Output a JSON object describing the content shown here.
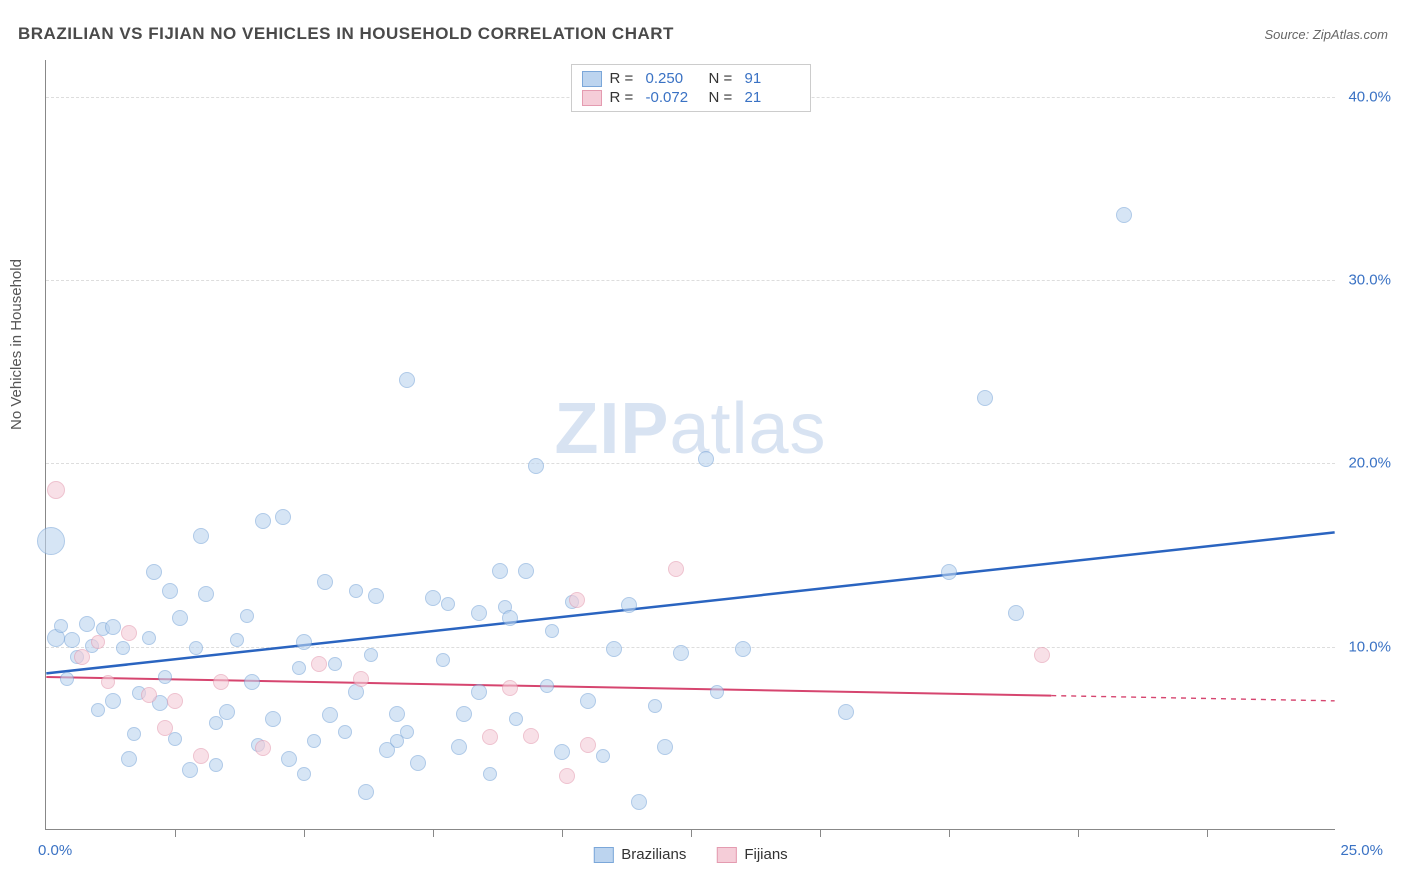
{
  "title": "BRAZILIAN VS FIJIAN NO VEHICLES IN HOUSEHOLD CORRELATION CHART",
  "source_label": "Source: ZipAtlas.com",
  "ylabel": "No Vehicles in Household",
  "watermark_a": "ZIP",
  "watermark_b": "atlas",
  "chart": {
    "type": "scatter",
    "xlim": [
      0,
      25
    ],
    "ylim": [
      0,
      42
    ],
    "x_tick_labels": {
      "0": "0.0%",
      "25": "25.0%"
    },
    "y_tick_labels": {
      "10": "10.0%",
      "20": "20.0%",
      "30": "30.0%",
      "40": "40.0%"
    },
    "x_minor_ticks": [
      2.5,
      5,
      7.5,
      10,
      12.5,
      15,
      17.5,
      20,
      22.5
    ],
    "grid_color": "#dddddd",
    "axis_color": "#888888",
    "background": "#ffffff",
    "label_color": "#3a72c4",
    "label_fontsize": 15
  },
  "series": [
    {
      "name": "Brazilians",
      "fill": "#bcd4ef",
      "stroke": "#7ba7d9",
      "fill_opacity": 0.6,
      "line_color": "#2a64c0",
      "line_width": 2.5,
      "R": "0.250",
      "N": "91",
      "trend": {
        "x1": 0,
        "y1": 8.5,
        "x2": 25,
        "y2": 16.2,
        "solid_until_x": 25
      },
      "points": [
        {
          "x": 0.1,
          "y": 15.7,
          "r": 14
        },
        {
          "x": 0.2,
          "y": 10.4,
          "r": 9
        },
        {
          "x": 0.3,
          "y": 11.1,
          "r": 7
        },
        {
          "x": 0.5,
          "y": 10.3,
          "r": 8
        },
        {
          "x": 0.6,
          "y": 9.4,
          "r": 7
        },
        {
          "x": 0.8,
          "y": 11.2,
          "r": 8
        },
        {
          "x": 0.9,
          "y": 10.0,
          "r": 7
        },
        {
          "x": 1.1,
          "y": 10.9,
          "r": 7
        },
        {
          "x": 1.3,
          "y": 11.0,
          "r": 8
        },
        {
          "x": 1.5,
          "y": 9.9,
          "r": 7
        },
        {
          "x": 1.3,
          "y": 7.0,
          "r": 8
        },
        {
          "x": 1.6,
          "y": 3.8,
          "r": 8
        },
        {
          "x": 1.8,
          "y": 7.4,
          "r": 7
        },
        {
          "x": 2.0,
          "y": 10.4,
          "r": 7
        },
        {
          "x": 2.1,
          "y": 14.0,
          "r": 8
        },
        {
          "x": 2.2,
          "y": 6.9,
          "r": 8
        },
        {
          "x": 2.4,
          "y": 13.0,
          "r": 8
        },
        {
          "x": 2.6,
          "y": 11.5,
          "r": 8
        },
        {
          "x": 2.9,
          "y": 9.9,
          "r": 7
        },
        {
          "x": 3.0,
          "y": 16.0,
          "r": 8
        },
        {
          "x": 3.1,
          "y": 12.8,
          "r": 8
        },
        {
          "x": 2.8,
          "y": 3.2,
          "r": 8
        },
        {
          "x": 3.3,
          "y": 5.8,
          "r": 7
        },
        {
          "x": 3.5,
          "y": 6.4,
          "r": 8
        },
        {
          "x": 3.7,
          "y": 10.3,
          "r": 7
        },
        {
          "x": 4.0,
          "y": 8.0,
          "r": 8
        },
        {
          "x": 4.2,
          "y": 16.8,
          "r": 8
        },
        {
          "x": 4.6,
          "y": 17.0,
          "r": 8
        },
        {
          "x": 4.4,
          "y": 6.0,
          "r": 8
        },
        {
          "x": 4.7,
          "y": 3.8,
          "r": 8
        },
        {
          "x": 5.0,
          "y": 10.2,
          "r": 8
        },
        {
          "x": 5.2,
          "y": 4.8,
          "r": 7
        },
        {
          "x": 5.4,
          "y": 13.5,
          "r": 8
        },
        {
          "x": 5.5,
          "y": 6.2,
          "r": 8
        },
        {
          "x": 5.8,
          "y": 5.3,
          "r": 7
        },
        {
          "x": 6.0,
          "y": 7.5,
          "r": 8
        },
        {
          "x": 6.2,
          "y": 2.0,
          "r": 8
        },
        {
          "x": 6.4,
          "y": 12.7,
          "r": 8
        },
        {
          "x": 6.6,
          "y": 4.3,
          "r": 8
        },
        {
          "x": 6.8,
          "y": 6.3,
          "r": 8
        },
        {
          "x": 6.8,
          "y": 4.8,
          "r": 7
        },
        {
          "x": 7.0,
          "y": 24.5,
          "r": 8
        },
        {
          "x": 7.2,
          "y": 3.6,
          "r": 8
        },
        {
          "x": 7.5,
          "y": 12.6,
          "r": 8
        },
        {
          "x": 7.8,
          "y": 12.3,
          "r": 7
        },
        {
          "x": 8.0,
          "y": 4.5,
          "r": 8
        },
        {
          "x": 8.1,
          "y": 6.3,
          "r": 8
        },
        {
          "x": 8.4,
          "y": 7.5,
          "r": 8
        },
        {
          "x": 8.4,
          "y": 11.8,
          "r": 8
        },
        {
          "x": 8.8,
          "y": 14.1,
          "r": 8
        },
        {
          "x": 8.9,
          "y": 12.1,
          "r": 7
        },
        {
          "x": 9.0,
          "y": 11.5,
          "r": 8
        },
        {
          "x": 9.3,
          "y": 14.1,
          "r": 8
        },
        {
          "x": 9.5,
          "y": 19.8,
          "r": 8
        },
        {
          "x": 9.7,
          "y": 7.8,
          "r": 7
        },
        {
          "x": 10.0,
          "y": 4.2,
          "r": 8
        },
        {
          "x": 10.2,
          "y": 12.4,
          "r": 7
        },
        {
          "x": 10.5,
          "y": 7.0,
          "r": 8
        },
        {
          "x": 11.0,
          "y": 9.8,
          "r": 8
        },
        {
          "x": 11.3,
          "y": 12.2,
          "r": 8
        },
        {
          "x": 11.5,
          "y": 1.5,
          "r": 8
        },
        {
          "x": 12.0,
          "y": 4.5,
          "r": 8
        },
        {
          "x": 12.3,
          "y": 9.6,
          "r": 8
        },
        {
          "x": 12.8,
          "y": 20.2,
          "r": 8
        },
        {
          "x": 13.5,
          "y": 9.8,
          "r": 8
        },
        {
          "x": 15.5,
          "y": 6.4,
          "r": 8
        },
        {
          "x": 17.5,
          "y": 14.0,
          "r": 8
        },
        {
          "x": 18.2,
          "y": 23.5,
          "r": 8
        },
        {
          "x": 18.8,
          "y": 11.8,
          "r": 8
        },
        {
          "x": 20.9,
          "y": 33.5,
          "r": 8
        },
        {
          "x": 3.3,
          "y": 3.5,
          "r": 7
        },
        {
          "x": 2.3,
          "y": 8.3,
          "r": 7
        },
        {
          "x": 1.0,
          "y": 6.5,
          "r": 7
        },
        {
          "x": 5.6,
          "y": 9.0,
          "r": 7
        },
        {
          "x": 6.3,
          "y": 9.5,
          "r": 7
        },
        {
          "x": 4.1,
          "y": 4.6,
          "r": 7
        },
        {
          "x": 8.6,
          "y": 3.0,
          "r": 7
        },
        {
          "x": 9.1,
          "y": 6.0,
          "r": 7
        },
        {
          "x": 7.0,
          "y": 5.3,
          "r": 7
        },
        {
          "x": 11.8,
          "y": 6.7,
          "r": 7
        },
        {
          "x": 2.5,
          "y": 4.9,
          "r": 7
        },
        {
          "x": 0.4,
          "y": 8.2,
          "r": 7
        },
        {
          "x": 1.7,
          "y": 5.2,
          "r": 7
        },
        {
          "x": 3.9,
          "y": 11.6,
          "r": 7
        },
        {
          "x": 7.7,
          "y": 9.2,
          "r": 7
        },
        {
          "x": 5.0,
          "y": 3.0,
          "r": 7
        },
        {
          "x": 10.8,
          "y": 4.0,
          "r": 7
        },
        {
          "x": 13.0,
          "y": 7.5,
          "r": 7
        },
        {
          "x": 4.9,
          "y": 8.8,
          "r": 7
        },
        {
          "x": 6.0,
          "y": 13.0,
          "r": 7
        },
        {
          "x": 9.8,
          "y": 10.8,
          "r": 7
        }
      ]
    },
    {
      "name": "Fijians",
      "fill": "#f5cdd8",
      "stroke": "#e49bb0",
      "fill_opacity": 0.6,
      "line_color": "#d6456f",
      "line_width": 2,
      "R": "-0.072",
      "N": "21",
      "trend": {
        "x1": 0,
        "y1": 8.3,
        "x2": 25,
        "y2": 7.0,
        "solid_until_x": 19.5
      },
      "points": [
        {
          "x": 0.2,
          "y": 18.5,
          "r": 9
        },
        {
          "x": 0.7,
          "y": 9.4,
          "r": 8
        },
        {
          "x": 1.0,
          "y": 10.2,
          "r": 7
        },
        {
          "x": 1.2,
          "y": 8.0,
          "r": 7
        },
        {
          "x": 1.6,
          "y": 10.7,
          "r": 8
        },
        {
          "x": 2.0,
          "y": 7.3,
          "r": 8
        },
        {
          "x": 2.3,
          "y": 5.5,
          "r": 8
        },
        {
          "x": 2.5,
          "y": 7.0,
          "r": 8
        },
        {
          "x": 3.0,
          "y": 4.0,
          "r": 8
        },
        {
          "x": 3.4,
          "y": 8.0,
          "r": 8
        },
        {
          "x": 4.2,
          "y": 4.4,
          "r": 8
        },
        {
          "x": 5.3,
          "y": 9.0,
          "r": 8
        },
        {
          "x": 6.1,
          "y": 8.2,
          "r": 8
        },
        {
          "x": 8.6,
          "y": 5.0,
          "r": 8
        },
        {
          "x": 9.0,
          "y": 7.7,
          "r": 8
        },
        {
          "x": 9.4,
          "y": 5.1,
          "r": 8
        },
        {
          "x": 10.1,
          "y": 2.9,
          "r": 8
        },
        {
          "x": 10.3,
          "y": 12.5,
          "r": 8
        },
        {
          "x": 10.5,
          "y": 4.6,
          "r": 8
        },
        {
          "x": 12.2,
          "y": 14.2,
          "r": 8
        },
        {
          "x": 19.3,
          "y": 9.5,
          "r": 8
        }
      ]
    }
  ],
  "legend_top_labels": {
    "R": "R =",
    "N": "N ="
  },
  "legend_bottom": [
    "Brazilians",
    "Fijians"
  ]
}
